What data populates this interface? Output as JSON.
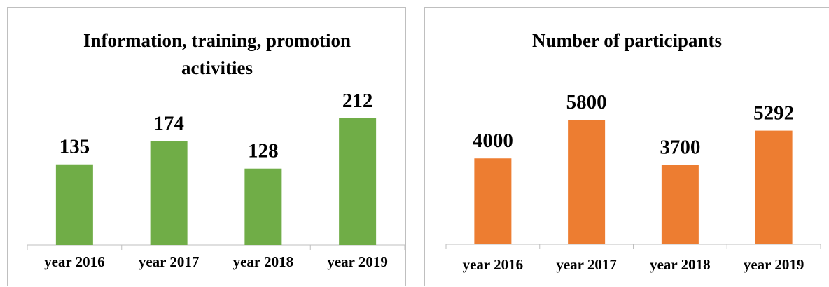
{
  "chart_data": [
    {
      "type": "bar",
      "title": "Information, training, promotion activities",
      "categories": [
        "year 2016",
        "year 2017",
        "year 2018",
        "year 2019"
      ],
      "values": [
        135,
        174,
        128,
        212
      ],
      "color": "#70ad47"
    },
    {
      "type": "bar",
      "title": "Number of participants",
      "categories": [
        "year 2016",
        "year 2017",
        "year 2018",
        "year 2019"
      ],
      "values": [
        4000,
        5800,
        3700,
        5292
      ],
      "color": "#ed7d31"
    }
  ]
}
